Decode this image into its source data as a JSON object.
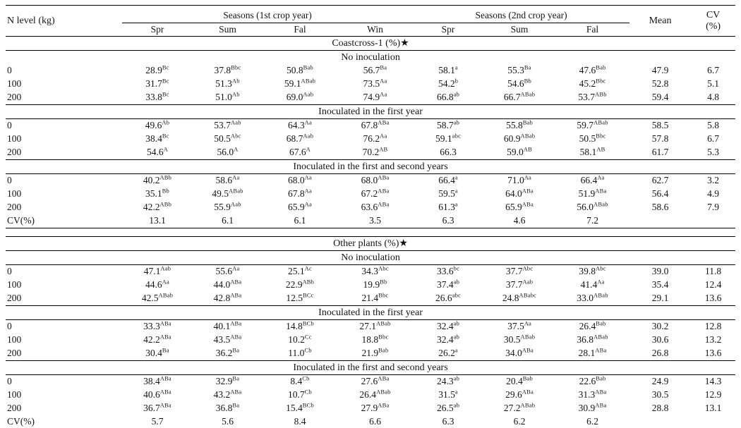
{
  "header": {
    "n_level": "N level (kg)",
    "group1": "Seasons (1st crop year)",
    "group2": "Seasons (2nd crop year)",
    "mean": "Mean",
    "cv_line1": "CV",
    "cv_line2": "(%)",
    "season_cols": [
      "Spr",
      "Sum",
      "Fal",
      "Win",
      "Spr",
      "Sum",
      "Fal"
    ]
  },
  "sections": [
    {
      "title": "Coastcross-1 (%)★",
      "blocks": [
        {
          "subtitle": "No inoculation",
          "rule_top": false,
          "rule_bottom": false,
          "rows": [
            {
              "label": "0",
              "values": [
                "28.9^Bc",
                "37.8^Bbc",
                "50.8^Bab",
                "56.7^Ba",
                "58.1^a",
                "55.3^Ba",
                "47.6^Bab"
              ],
              "mean": "47.9",
              "cv": "6.7"
            },
            {
              "label": "100",
              "values": [
                "31.7^Bc",
                "51.3^Ab",
                "59.1^ABab",
                "73.5^Aa",
                "54.2^b",
                "54.6^Bb",
                "45.2^Bbc"
              ],
              "mean": "52.8",
              "cv": "5.1"
            },
            {
              "label": "200",
              "values": [
                "33.8^Bc",
                "51.0^Ab",
                "69.0^Aab",
                "74.9^Aa",
                "66.8^ab",
                "66.7^ABab",
                "53.7^ABb"
              ],
              "mean": "59.4",
              "cv": "4.8"
            }
          ]
        },
        {
          "subtitle": "Inoculated in the first year",
          "rule_top": true,
          "rule_bottom": true,
          "rows": [
            {
              "label": "0",
              "values": [
                "49.6^Ab",
                "53.7^Aab",
                "64.3^Aa",
                "67.8^ABa",
                "58.7^ab",
                "55.8^Bab",
                "59.7^ABab"
              ],
              "mean": "58.5",
              "cv": "5.8"
            },
            {
              "label": "100",
              "values": [
                "38.4^Bc",
                "50.5^Abc",
                "68.7^Aab",
                "76.2^Aa",
                "59.1^abc",
                "60.9^ABab",
                "50.5^Bbc"
              ],
              "mean": "57.8",
              "cv": "6.7"
            },
            {
              "label": "200",
              "values": [
                "54.6^A",
                "56.0^A",
                "67.6^A",
                "70.2^AB",
                "66.3",
                "59.0^AB",
                "58.1^AB"
              ],
              "mean": "61.7",
              "cv": "5.3"
            }
          ]
        },
        {
          "subtitle": "Inoculated in the first and second years",
          "rule_top": true,
          "rule_bottom": true,
          "rows": [
            {
              "label": "0",
              "values": [
                "40.2^ABb",
                "58.6^Aa",
                "68.0^Aa",
                "68.0^ABa",
                "66.4^a",
                "71.0^Aa",
                "66.4^Aa"
              ],
              "mean": "62.7",
              "cv": "3.2"
            },
            {
              "label": "100",
              "values": [
                "35.1^Bb",
                "49.5^ABab",
                "67.8^Aa",
                "67.2^ABa",
                "59.5^a",
                "64.0^ABa",
                "51.9^ABa"
              ],
              "mean": "56.4",
              "cv": "4.9"
            },
            {
              "label": "200",
              "values": [
                "42.2^ABb",
                "55.9^Aab",
                "65.9^Aa",
                "63.6^ABa",
                "61.3^a",
                "65.9^ABa",
                "56.0^ABab"
              ],
              "mean": "58.6",
              "cv": "7.9"
            }
          ]
        }
      ],
      "cv_row": {
        "label": "CV(%)",
        "values": [
          "13.1",
          "6.1",
          "6.1",
          "3.5",
          "6.3",
          "4.6",
          "7.2"
        ],
        "mean": "",
        "cv": ""
      }
    },
    {
      "title": "Other plants (%)★",
      "blocks": [
        {
          "subtitle": "No inoculation",
          "rule_top": false,
          "rule_bottom": true,
          "rows": [
            {
              "label": "0",
              "values": [
                "47.1^Aab",
                "55.6^Aa",
                "25.1^Ac",
                "34.3^Abc",
                "33.6^bc",
                "37.7^Abc",
                "39.8^Abc"
              ],
              "mean": "39.0",
              "cv": "11.8"
            },
            {
              "label": "100",
              "values": [
                "44.6^Aa",
                "44.0^ABa",
                "22.9^ABb",
                "19.9^Bb",
                "37.4^ab",
                "37.7^Aab",
                "41.4^Aa"
              ],
              "mean": "35.4",
              "cv": "12.4"
            },
            {
              "label": "200",
              "values": [
                "42.5^ABab",
                "42.8^ABa",
                "12.5^BCc",
                "21.4^Bbc",
                "26.6^abc",
                "24.8^ABabc",
                "33.0^ABab"
              ],
              "mean": "29.1",
              "cv": "13.6"
            }
          ]
        },
        {
          "subtitle": "Inoculated in the first year",
          "rule_top": true,
          "rule_bottom": true,
          "rows": [
            {
              "label": "0",
              "values": [
                "33.3^ABa",
                "40.1^ABa",
                "14.8^BCb",
                "27.1^ABab",
                "32.4^ab",
                "37.5^Aa",
                "26.4^Bab"
              ],
              "mean": "30.2",
              "cv": "12.8"
            },
            {
              "label": "100",
              "values": [
                "42.2^ABa",
                "43.5^ABa",
                "10.2^Cc",
                "18.8^Bbc",
                "32.4^ab",
                "30.5^ABab",
                "36.8^ABab"
              ],
              "mean": "30.6",
              "cv": "13.2"
            },
            {
              "label": "200",
              "values": [
                "30.4^Ba",
                "36.2^Ba",
                "11.0^Cb",
                "21.9^Bab",
                "26.2^a",
                "34.0^ABa",
                "28.1^ABa"
              ],
              "mean": "26.8",
              "cv": "13.6"
            }
          ]
        },
        {
          "subtitle": "Inoculated in the first and second years",
          "rule_top": true,
          "rule_bottom": true,
          "rows": [
            {
              "label": "0",
              "values": [
                "38.4^ABa",
                "32.9^Ba",
                "8.4^Cb",
                "27.6^ABa",
                "24.3^ab",
                "20.4^Bab",
                "22.6^Bab"
              ],
              "mean": "24.9",
              "cv": "14.3"
            },
            {
              "label": "100",
              "values": [
                "40.6^ABa",
                "43.2^ABa",
                "10.7^Cb",
                "26.4^ABab",
                "31.5^a",
                "29.6^ABa",
                "31.3^ABa"
              ],
              "mean": "30.5",
              "cv": "12.9"
            },
            {
              "label": "200",
              "values": [
                "36.7^ABa",
                "36.8^Ba",
                "15.4^BCb",
                "27.9^ABa",
                "26.5^ab",
                "27.2^ABab",
                "30.9^ABa"
              ],
              "mean": "28.8",
              "cv": "13.1"
            }
          ]
        }
      ],
      "cv_row": {
        "label": "CV(%)",
        "values": [
          "5.7",
          "5.6",
          "8.4",
          "6.6",
          "6.3",
          "6.2",
          "6.2"
        ],
        "mean": "",
        "cv": ""
      }
    }
  ]
}
